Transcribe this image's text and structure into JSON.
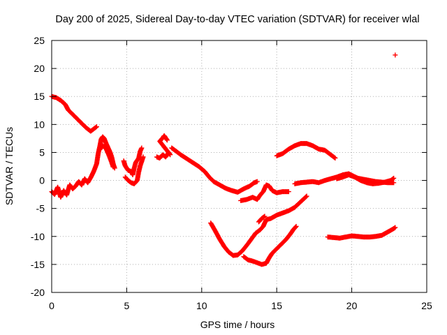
{
  "chart_data": {
    "type": "scatter",
    "title": "Day 200 of 2025, Sidereal Day-to-day VTEC variation (SDTVAR) for receiver wlal",
    "xlabel": "GPS time / hours",
    "ylabel": "SDTVAR / TECUs",
    "xlim": [
      0,
      25
    ],
    "ylim": [
      -20,
      25
    ],
    "xticks": [
      0,
      5,
      10,
      15,
      20,
      25
    ],
    "yticks": [
      -20,
      -15,
      -10,
      -5,
      0,
      5,
      10,
      15,
      20,
      25
    ],
    "grid": true,
    "marker": "plus",
    "color": "#ff0000",
    "series": [
      {
        "name": "arc-1",
        "points": [
          [
            0.0,
            15.0
          ],
          [
            0.3,
            14.8
          ],
          [
            0.6,
            14.3
          ],
          [
            0.9,
            13.6
          ],
          [
            1.1,
            12.6
          ],
          [
            1.4,
            11.8
          ],
          [
            1.7,
            11.0
          ],
          [
            2.0,
            10.2
          ],
          [
            2.3,
            9.4
          ],
          [
            2.6,
            8.8
          ],
          [
            2.8,
            9.2
          ],
          [
            3.0,
            9.6
          ]
        ]
      },
      {
        "name": "arc-2",
        "points": [
          [
            0.0,
            -2.0
          ],
          [
            0.2,
            -2.5
          ],
          [
            0.4,
            -1.2
          ],
          [
            0.6,
            -3.0
          ],
          [
            0.8,
            -1.8
          ],
          [
            1.0,
            -2.6
          ],
          [
            1.2,
            -0.8
          ],
          [
            1.4,
            -1.5
          ],
          [
            1.6,
            -1.0
          ],
          [
            1.8,
            -0.2
          ],
          [
            2.0,
            -0.8
          ],
          [
            2.2,
            0.3
          ],
          [
            2.4,
            -0.4
          ],
          [
            2.6,
            0.5
          ],
          [
            2.8,
            1.6
          ],
          [
            3.0,
            3.0
          ],
          [
            3.1,
            4.8
          ],
          [
            3.2,
            6.0
          ],
          [
            3.3,
            7.4
          ],
          [
            3.4,
            7.8
          ],
          [
            3.5,
            7.5
          ],
          [
            3.6,
            6.8
          ],
          [
            3.7,
            6.2
          ],
          [
            3.8,
            5.6
          ],
          [
            3.9,
            5.0
          ],
          [
            4.0,
            4.2
          ],
          [
            4.1,
            3.0
          ],
          [
            4.2,
            2.2
          ]
        ]
      },
      {
        "name": "arc-3",
        "points": [
          [
            3.2,
            5.5
          ],
          [
            3.4,
            6.2
          ],
          [
            3.6,
            5.8
          ],
          [
            3.8,
            4.6
          ],
          [
            4.0,
            3.2
          ],
          [
            4.1,
            2.4
          ]
        ]
      },
      {
        "name": "arc-4",
        "points": [
          [
            4.8,
            3.5
          ],
          [
            4.9,
            2.6
          ],
          [
            5.1,
            1.8
          ],
          [
            5.3,
            1.6
          ],
          [
            5.4,
            1.0
          ],
          [
            5.5,
            2.2
          ],
          [
            5.6,
            3.2
          ],
          [
            5.8,
            4.0
          ],
          [
            5.9,
            5.2
          ],
          [
            6.0,
            5.8
          ]
        ]
      },
      {
        "name": "arc-5",
        "points": [
          [
            4.9,
            0.6
          ],
          [
            5.1,
            0.0
          ],
          [
            5.3,
            -0.4
          ],
          [
            5.5,
            -0.6
          ],
          [
            5.7,
            0.0
          ],
          [
            5.8,
            1.5
          ],
          [
            5.9,
            2.6
          ],
          [
            6.0,
            3.4
          ],
          [
            6.1,
            4.2
          ]
        ]
      },
      {
        "name": "arc-6",
        "points": [
          [
            7.0,
            4.2
          ],
          [
            7.2,
            4.0
          ],
          [
            7.4,
            4.6
          ],
          [
            7.6,
            4.2
          ],
          [
            7.8,
            5.0
          ],
          [
            7.9,
            4.6
          ],
          [
            7.2,
            7.0
          ],
          [
            7.4,
            7.6
          ],
          [
            7.5,
            8.0
          ],
          [
            7.7,
            7.2
          ]
        ]
      },
      {
        "name": "arc-7",
        "points": [
          [
            8.0,
            5.8
          ],
          [
            8.3,
            5.2
          ],
          [
            8.6,
            4.6
          ],
          [
            9.0,
            3.9
          ],
          [
            9.4,
            3.2
          ],
          [
            9.8,
            2.5
          ],
          [
            10.2,
            1.6
          ],
          [
            10.5,
            0.6
          ],
          [
            10.8,
            -0.2
          ],
          [
            11.2,
            -0.8
          ],
          [
            11.6,
            -1.4
          ],
          [
            12.0,
            -1.8
          ],
          [
            12.4,
            -2.1
          ],
          [
            12.8,
            -1.5
          ],
          [
            13.2,
            -1.0
          ],
          [
            13.5,
            -0.4
          ],
          [
            13.7,
            -0.2
          ]
        ]
      },
      {
        "name": "arc-8",
        "points": [
          [
            12.6,
            -3.6
          ],
          [
            13.0,
            -3.4
          ],
          [
            13.4,
            -3.0
          ],
          [
            13.7,
            -3.4
          ],
          [
            13.9,
            -2.6
          ],
          [
            14.1,
            -2.0
          ],
          [
            14.3,
            -0.8
          ],
          [
            14.5,
            -1.0
          ],
          [
            14.7,
            -1.8
          ],
          [
            15.0,
            -2.2
          ],
          [
            15.4,
            -2.0
          ],
          [
            15.8,
            -2.0
          ]
        ]
      },
      {
        "name": "arc-9",
        "points": [
          [
            15.0,
            4.4
          ],
          [
            15.4,
            4.8
          ],
          [
            15.8,
            5.6
          ],
          [
            16.2,
            6.2
          ],
          [
            16.6,
            6.6
          ],
          [
            17.0,
            6.6
          ],
          [
            17.4,
            6.2
          ],
          [
            17.8,
            5.6
          ],
          [
            18.2,
            5.4
          ],
          [
            18.6,
            4.6
          ],
          [
            18.9,
            4.0
          ]
        ]
      },
      {
        "name": "arc-10",
        "points": [
          [
            10.6,
            -7.6
          ],
          [
            10.9,
            -9.0
          ],
          [
            11.2,
            -10.5
          ],
          [
            11.5,
            -11.8
          ],
          [
            11.8,
            -12.8
          ],
          [
            12.1,
            -13.4
          ],
          [
            12.4,
            -13.3
          ],
          [
            12.7,
            -12.6
          ],
          [
            13.0,
            -11.6
          ],
          [
            13.3,
            -10.5
          ],
          [
            13.6,
            -9.4
          ],
          [
            13.9,
            -8.8
          ],
          [
            14.1,
            -8.2
          ],
          [
            14.3,
            -7.0
          ],
          [
            14.6,
            -6.8
          ],
          [
            15.0,
            -6.2
          ],
          [
            15.4,
            -5.8
          ],
          [
            15.8,
            -5.4
          ],
          [
            16.2,
            -4.8
          ],
          [
            16.6,
            -3.8
          ],
          [
            17.0,
            -2.8
          ]
        ]
      },
      {
        "name": "arc-11",
        "points": [
          [
            12.8,
            -13.6
          ],
          [
            13.1,
            -14.2
          ],
          [
            13.4,
            -14.4
          ],
          [
            13.7,
            -14.7
          ],
          [
            14.0,
            -15.0
          ],
          [
            14.3,
            -14.8
          ],
          [
            14.5,
            -13.8
          ],
          [
            14.7,
            -13.0
          ],
          [
            15.0,
            -12.2
          ],
          [
            15.3,
            -11.4
          ],
          [
            15.6,
            -10.6
          ],
          [
            15.9,
            -9.6
          ],
          [
            16.1,
            -8.8
          ],
          [
            16.3,
            -8.2
          ]
        ]
      },
      {
        "name": "arc-12",
        "points": [
          [
            13.8,
            -7.4
          ],
          [
            14.0,
            -6.8
          ],
          [
            14.2,
            -6.4
          ]
        ]
      },
      {
        "name": "arc-13",
        "points": [
          [
            16.2,
            -0.6
          ],
          [
            16.6,
            -0.4
          ],
          [
            17.0,
            -0.3
          ],
          [
            17.4,
            -0.2
          ],
          [
            17.8,
            -0.4
          ],
          [
            18.2,
            0.0
          ],
          [
            18.6,
            0.3
          ],
          [
            19.0,
            0.6
          ],
          [
            19.4,
            1.0
          ],
          [
            19.8,
            1.2
          ],
          [
            20.1,
            0.8
          ],
          [
            20.4,
            0.4
          ],
          [
            20.8,
            0.2
          ],
          [
            21.2,
            0.0
          ],
          [
            21.6,
            -0.2
          ],
          [
            22.0,
            -0.3
          ],
          [
            22.4,
            -0.4
          ],
          [
            22.8,
            -0.4
          ]
        ]
      },
      {
        "name": "arc-14",
        "points": [
          [
            19.0,
            0.3
          ],
          [
            19.4,
            0.6
          ],
          [
            19.8,
            1.0
          ],
          [
            20.2,
            0.6
          ],
          [
            20.6,
            0.0
          ],
          [
            21.0,
            -0.4
          ],
          [
            21.4,
            -0.6
          ],
          [
            21.8,
            -0.5
          ],
          [
            22.2,
            -0.3
          ],
          [
            22.6,
            0.0
          ],
          [
            22.8,
            0.4
          ]
        ]
      },
      {
        "name": "arc-15",
        "points": [
          [
            18.4,
            -10.1
          ],
          [
            18.8,
            -10.2
          ],
          [
            19.2,
            -10.3
          ],
          [
            19.6,
            -10.1
          ],
          [
            20.0,
            -9.9
          ],
          [
            20.4,
            -10.0
          ],
          [
            20.8,
            -10.1
          ],
          [
            21.2,
            -10.1
          ],
          [
            21.6,
            -10.0
          ],
          [
            22.0,
            -9.8
          ],
          [
            22.4,
            -9.2
          ],
          [
            22.8,
            -8.6
          ],
          [
            22.9,
            -8.4
          ]
        ]
      },
      {
        "name": "outlier",
        "points": [
          [
            22.9,
            22.4
          ]
        ]
      }
    ]
  }
}
